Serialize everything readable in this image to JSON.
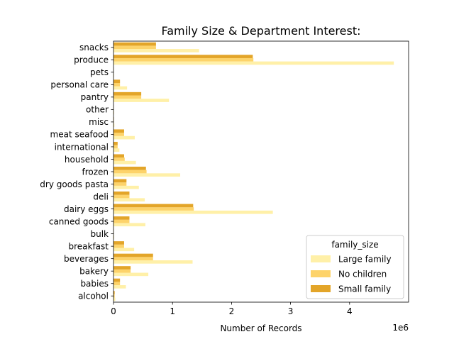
{
  "chart_data": {
    "type": "bar",
    "orientation": "horizontal",
    "title": "Family Size & Department Interest:",
    "xlabel": "Number of Records",
    "ylabel": "",
    "x_offset_text": "1e6",
    "x_ticks": [
      0,
      1,
      2,
      3,
      4
    ],
    "x_tick_scale": 1000000,
    "xlim": [
      0,
      5000000
    ],
    "grid": false,
    "legend": {
      "title": "family_size",
      "placement": "lower-right"
    },
    "categories": [
      "snacks",
      "produce",
      "pets",
      "personal care",
      "pantry",
      "other",
      "misc",
      "meat seafood",
      "international",
      "household",
      "frozen",
      "dry goods pasta",
      "deli",
      "dairy eggs",
      "canned goods",
      "bulk",
      "breakfast",
      "beverages",
      "bakery",
      "babies",
      "alcohol"
    ],
    "series": [
      {
        "name": "Large family",
        "color": "#fff0a8",
        "values": [
          1450000,
          4750000,
          9000,
          230000,
          940000,
          10000,
          15000,
          360000,
          100000,
          380000,
          1130000,
          430000,
          530000,
          2700000,
          540000,
          10000,
          350000,
          1340000,
          590000,
          210000,
          30000
        ]
      },
      {
        "name": "No children",
        "color": "#fdd36a",
        "values": [
          720000,
          2370000,
          4000,
          110000,
          470000,
          5000,
          7000,
          180000,
          70000,
          190000,
          560000,
          220000,
          270000,
          1360000,
          270000,
          5000,
          180000,
          670000,
          290000,
          110000,
          20000
        ]
      },
      {
        "name": "Small family",
        "color": "#e3a529",
        "values": [
          720000,
          2360000,
          4000,
          110000,
          470000,
          5000,
          7000,
          180000,
          70000,
          180000,
          550000,
          220000,
          270000,
          1350000,
          270000,
          5000,
          180000,
          670000,
          290000,
          110000,
          20000
        ]
      }
    ]
  }
}
